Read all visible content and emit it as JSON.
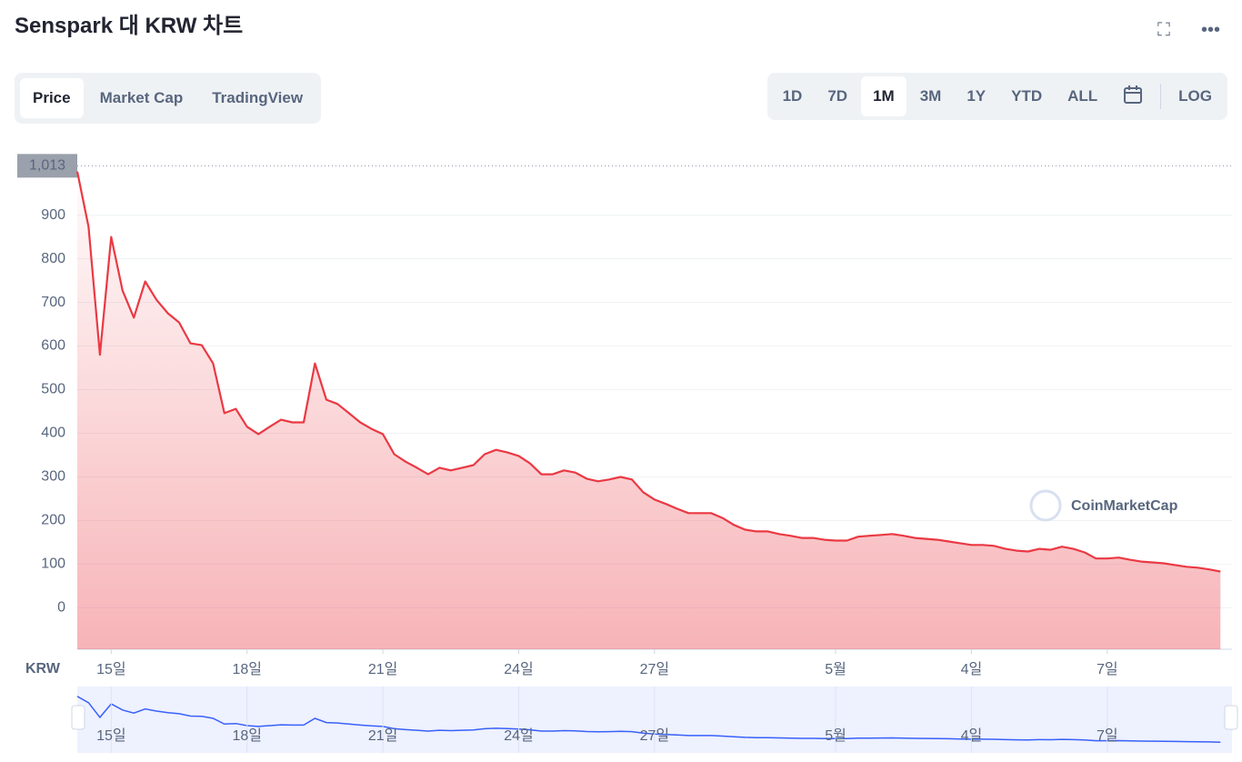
{
  "ui": {
    "title": "Senspark 대 KRW 차트",
    "tabs": [
      "Price",
      "Market Cap",
      "TradingView"
    ],
    "ranges": [
      "1D",
      "7D",
      "1M",
      "3M",
      "1Y",
      "YTD",
      "ALL"
    ],
    "log": "LOG",
    "currency": "KRW",
    "watermark": "CoinMarketCap"
  },
  "chart_data": {
    "type": "line",
    "categories": [
      null,
      null,
      null,
      "15일",
      null,
      null,
      null,
      null,
      null,
      null,
      null,
      null,
      null,
      null,
      null,
      "18일",
      null,
      null,
      null,
      null,
      null,
      null,
      null,
      null,
      null,
      null,
      null,
      "21일",
      null,
      null,
      null,
      null,
      null,
      null,
      null,
      null,
      null,
      null,
      null,
      "24일",
      null,
      null,
      null,
      null,
      null,
      null,
      null,
      null,
      null,
      null,
      null,
      "27일",
      null,
      null,
      null,
      null,
      null,
      null,
      null,
      null,
      null,
      null,
      null,
      null,
      null,
      null,
      null,
      "5월",
      null,
      null,
      null,
      null,
      null,
      null,
      null,
      null,
      null,
      null,
      null,
      "4일",
      null,
      null,
      null,
      null,
      null,
      null,
      null,
      null,
      null,
      null,
      null,
      "7일",
      null,
      null,
      null,
      null,
      null,
      null,
      null,
      null,
      null,
      null
    ],
    "series": [
      {
        "name": "Price",
        "color": "#ea3943",
        "values": [
          1000,
          873,
          580,
          850,
          727,
          665,
          748,
          706,
          675,
          654,
          606,
          602,
          560,
          446,
          456,
          415,
          398,
          415,
          431,
          425,
          425,
          560,
          477,
          467,
          446,
          425,
          410,
          398,
          352,
          335,
          321,
          306,
          321,
          315,
          321,
          327,
          352,
          362,
          356,
          348,
          331,
          306,
          306,
          315,
          310,
          296,
          290,
          294,
          300,
          294,
          265,
          248,
          238,
          227,
          217,
          217,
          217,
          206,
          190,
          179,
          175,
          175,
          169,
          165,
          160,
          160,
          156,
          154,
          154,
          163,
          165,
          167,
          169,
          165,
          160,
          158,
          156,
          152,
          148,
          144,
          144,
          142,
          135,
          131,
          129,
          135,
          133,
          140,
          135,
          127,
          113,
          113,
          115,
          110,
          106,
          104,
          102,
          98,
          94,
          92,
          88,
          83
        ]
      }
    ],
    "ylim": [
      -95,
      1070
    ],
    "yticks": [
      0,
      100,
      200,
      300,
      400,
      500,
      600,
      700,
      800,
      900
    ],
    "price_marker": {
      "value": 1013,
      "label": "1,013"
    },
    "grid": true
  }
}
